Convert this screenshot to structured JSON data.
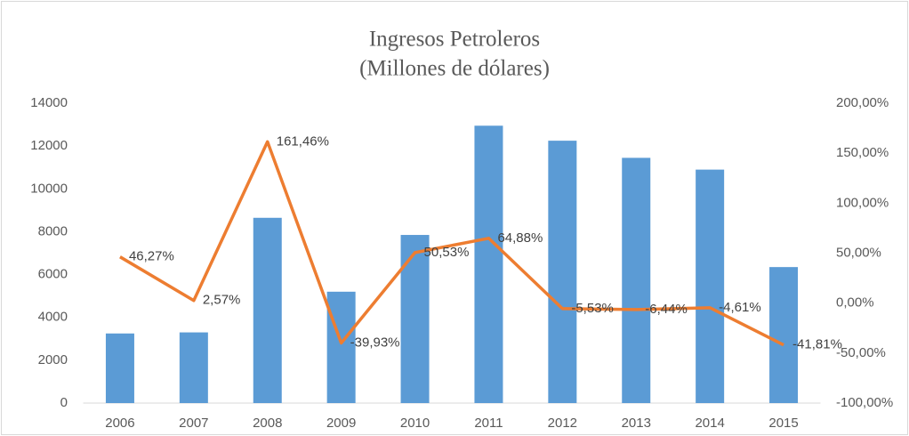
{
  "chart_data": {
    "type": "combo",
    "title": "Ingresos Petroleros",
    "subtitle": "(Millones de dólares)",
    "categories": [
      "2006",
      "2007",
      "2008",
      "2009",
      "2010",
      "2011",
      "2012",
      "2013",
      "2014",
      "2015"
    ],
    "series": [
      {
        "type": "bar",
        "color": "#5b9bd5",
        "values": [
          3250,
          3300,
          8650,
          5200,
          7850,
          12950,
          12250,
          11450,
          10900,
          6350
        ]
      },
      {
        "type": "line",
        "axis": "y2",
        "color": "#ed7d31",
        "values": [
          46.27,
          2.57,
          161.46,
          -39.93,
          50.53,
          64.88,
          -5.53,
          -6.44,
          -4.61,
          -41.81
        ],
        "value_labels": [
          "46,27%",
          "2,57%",
          "161,46%",
          "-39,93%",
          "50,53%",
          "64,88%",
          "-5,53%",
          "-6,44%",
          "-4,61%",
          "-41,81%"
        ]
      }
    ],
    "ylim": [
      0,
      14000
    ],
    "yticks": [
      0,
      2000,
      4000,
      6000,
      8000,
      10000,
      12000,
      14000
    ],
    "y2lim": [
      -100,
      200
    ],
    "y2ticks": [
      {
        "value": -100,
        "label": "-100,00%"
      },
      {
        "value": -50,
        "label": "-50,00%"
      },
      {
        "value": 0,
        "label": "0,00%"
      },
      {
        "value": 50,
        "label": "50,00%"
      },
      {
        "value": 100,
        "label": "100,00%"
      },
      {
        "value": 150,
        "label": "150,00%"
      },
      {
        "value": 200,
        "label": "200,00%"
      }
    ],
    "grid": false
  }
}
